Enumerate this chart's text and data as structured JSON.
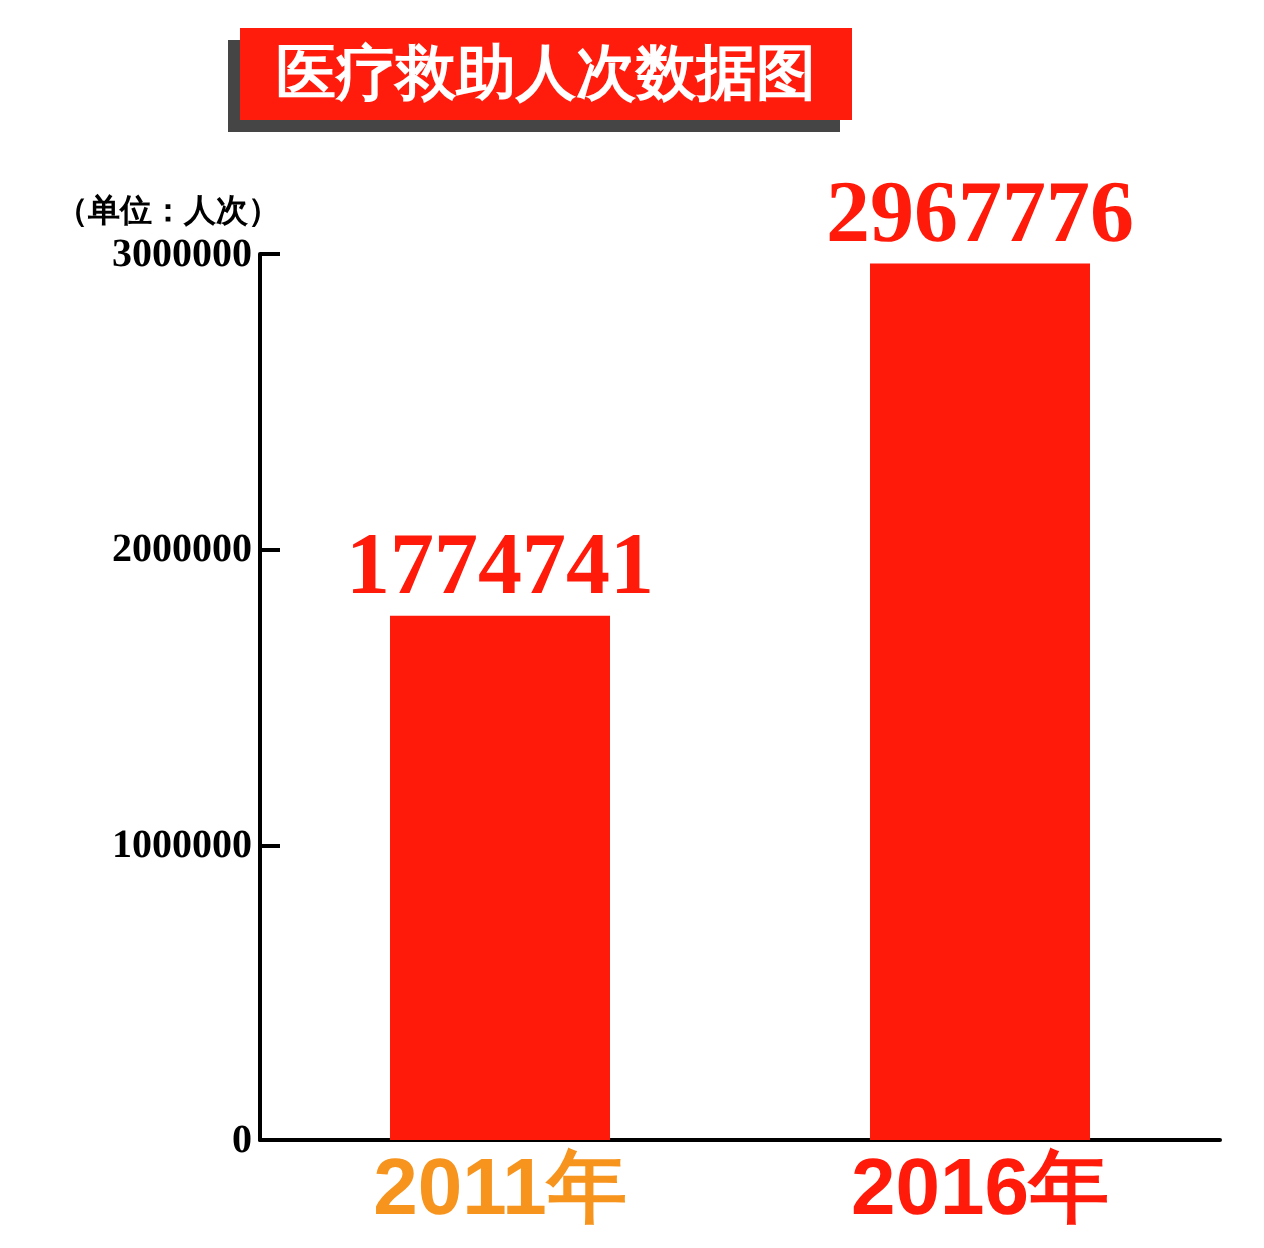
{
  "chart_data": {
    "type": "bar",
    "title": "医疗救助人次数据图",
    "ylabel": "（单位：人次）",
    "categories": [
      "2011年",
      "2016年"
    ],
    "values": [
      1774741,
      2967776
    ],
    "color": "#ff1a0a",
    "ylim": [
      0,
      3000000
    ],
    "yticks": [
      0,
      1000000,
      2000000,
      3000000
    ],
    "data_labels": true,
    "grid": false
  }
}
